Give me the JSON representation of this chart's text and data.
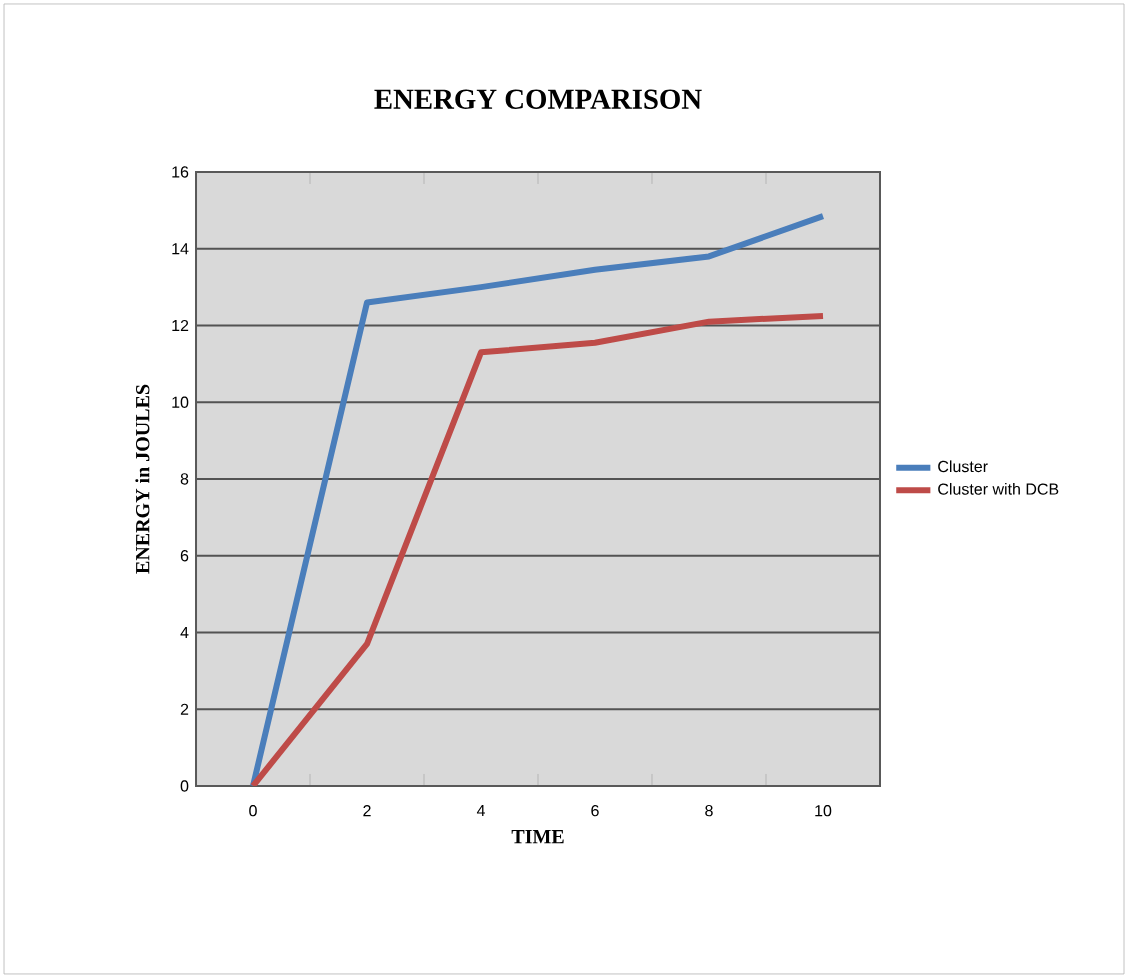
{
  "chart_data": {
    "type": "line",
    "title": "ENERGY  COMPARISON",
    "xlabel": "TIME",
    "ylabel": "ENERGY in JOULES",
    "categories": [
      "0",
      "2",
      "4",
      "6",
      "8",
      "10"
    ],
    "series": [
      {
        "name": "Cluster",
        "color": "#4a7ebb",
        "values": [
          0,
          12.6,
          13.0,
          13.45,
          13.8,
          14.85
        ]
      },
      {
        "name": "Cluster with DCB",
        "color": "#be4b48",
        "values": [
          0,
          3.7,
          11.3,
          11.55,
          12.1,
          12.25
        ]
      }
    ],
    "ylim": [
      0,
      16
    ],
    "yticks": [
      0,
      2,
      4,
      6,
      8,
      10,
      12,
      14,
      16
    ],
    "grid": "y",
    "legend": "right",
    "marker": "none",
    "line_style": "solid"
  }
}
